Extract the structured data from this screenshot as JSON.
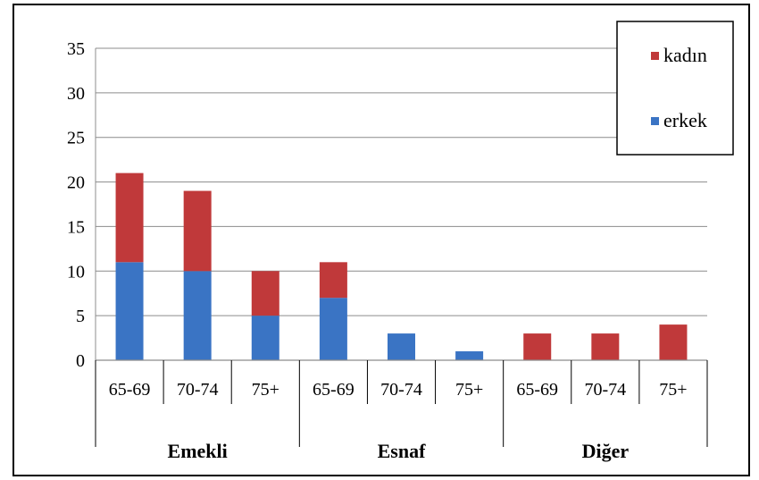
{
  "chart_data": {
    "type": "bar",
    "stacked": true,
    "groups": [
      {
        "label": "Emekli",
        "categories": [
          "65-69",
          "70-74",
          "75+"
        ]
      },
      {
        "label": "Esnaf",
        "categories": [
          "65-69",
          "70-74",
          "75+"
        ]
      },
      {
        "label": "Diğer",
        "categories": [
          "65-69",
          "70-74",
          "75+"
        ]
      }
    ],
    "series": [
      {
        "name": "erkek",
        "color": "#3A74C4",
        "values": [
          11,
          10,
          5,
          7,
          3,
          1,
          0,
          0,
          0
        ]
      },
      {
        "name": "kadın",
        "color": "#C0393A",
        "values": [
          10,
          9,
          5,
          4,
          0,
          0,
          3,
          3,
          4
        ]
      }
    ],
    "ylim": [
      0,
      35
    ],
    "yticks": [
      0,
      5,
      10,
      15,
      20,
      25,
      30,
      35
    ],
    "grid": true,
    "legend_position": "top-right",
    "legend_order": [
      "kadın",
      "erkek"
    ]
  }
}
